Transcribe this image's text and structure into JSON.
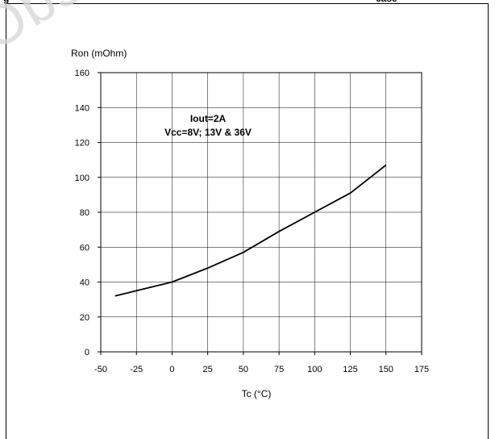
{
  "header": {
    "fragment_left": "g",
    "fragment_right": "case"
  },
  "watermark": "Obsolete",
  "chart_data": {
    "type": "line",
    "title": "",
    "xlabel": "Tc (°C)",
    "ylabel": "Ron (mOhm)",
    "xlim": [
      -50,
      175
    ],
    "ylim": [
      0,
      160
    ],
    "xticks": [
      -50,
      -25,
      0,
      25,
      50,
      75,
      100,
      125,
      150,
      175
    ],
    "yticks": [
      0,
      20,
      40,
      60,
      80,
      100,
      120,
      140,
      160
    ],
    "grid": true,
    "annotations": [
      "Iout=2A",
      "Vcc=8V; 13V & 36V"
    ],
    "series": [
      {
        "color": "#000000",
        "x": [
          -40,
          -25,
          0,
          25,
          50,
          75,
          100,
          125,
          150
        ],
        "y": [
          32,
          35,
          40,
          48,
          57,
          69,
          80,
          91,
          107
        ]
      }
    ]
  }
}
